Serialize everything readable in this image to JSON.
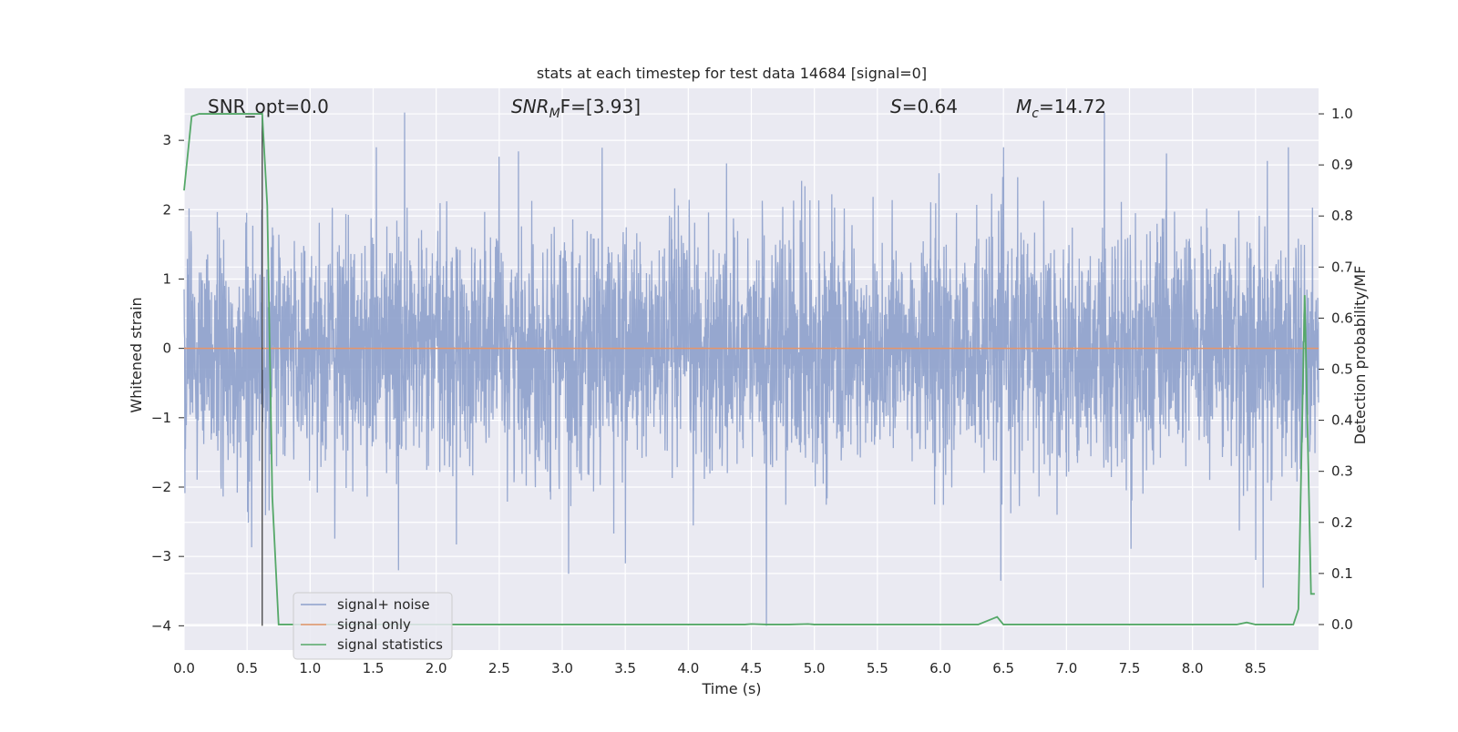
{
  "chart_data": {
    "type": "line",
    "title": "stats at each timestep for test data 14684 [signal=0]",
    "xlabel": "Time (s)",
    "ylabel": "Whitened strain",
    "y2label": "Detection probability/MF",
    "xlim": [
      0.0,
      9.0
    ],
    "ylim": [
      -4.35,
      3.75
    ],
    "y2lim": [
      -0.05,
      1.05
    ],
    "x_ticks": [
      0.0,
      0.5,
      1.0,
      1.5,
      2.0,
      2.5,
      3.0,
      3.5,
      4.0,
      4.5,
      5.0,
      5.5,
      6.0,
      6.5,
      7.0,
      7.5,
      8.0,
      8.5
    ],
    "x_tick_labels": [
      "0.0",
      "0.5",
      "1.0",
      "1.5",
      "2.0",
      "2.5",
      "3.0",
      "3.5",
      "4.0",
      "4.5",
      "5.0",
      "5.5",
      "6.0",
      "6.5",
      "7.0",
      "7.5",
      "8.0",
      "8.5"
    ],
    "y_ticks": [
      3,
      2,
      1,
      0,
      -1,
      -2,
      -3,
      -4
    ],
    "y_tick_labels": [
      "3",
      "2",
      "1",
      "0",
      "−1",
      "−2",
      "−3",
      "−4"
    ],
    "y2_ticks": [
      1.0,
      0.9,
      0.8,
      0.7,
      0.6,
      0.5,
      0.4,
      0.3,
      0.2,
      0.1,
      0.0
    ],
    "y2_tick_labels": [
      "1.0",
      "0.9",
      "0.8",
      "0.7",
      "0.6",
      "0.5",
      "0.4",
      "0.3",
      "0.2",
      "0.1",
      "0.0"
    ],
    "grid": true,
    "legend_position": "lower-left",
    "annotations": {
      "snr_opt": "SNR_opt=0.0",
      "snr_mf_main": "SNR",
      "snr_mf_sub": "M",
      "snr_mf_rest": "F=[3.93]",
      "s_main": "S",
      "s_rest": "=0.64",
      "mc_main": "M",
      "mc_sub": "c",
      "mc_rest": "=14.72"
    },
    "marker_line": {
      "x": 0.62,
      "y_from": -4.0,
      "y_to": 3.4
    },
    "series": [
      {
        "name": "signal+ noise",
        "color": "#8da0cb",
        "axis": "left",
        "description_only": false,
        "noise_seed": 14684,
        "n_samples": 4096,
        "spikes": [
          [
            1.75,
            3.4
          ],
          [
            7.3,
            3.4
          ],
          [
            4.62,
            -4.0
          ],
          [
            3.5,
            -3.1
          ],
          [
            1.7,
            -3.2
          ],
          [
            3.05,
            -3.25
          ],
          [
            6.48,
            -3.35
          ],
          [
            8.56,
            -3.45
          ],
          [
            8.5,
            -3.05
          ]
        ]
      },
      {
        "name": "signal only",
        "color": "#e5956a",
        "axis": "left",
        "x": [
          0.0,
          9.0
        ],
        "y": [
          0.0,
          0.0
        ]
      },
      {
        "name": "signal statistics",
        "color": "#55a868",
        "axis": "right",
        "x": [
          0.0,
          0.06,
          0.12,
          0.2,
          0.3,
          0.4,
          0.5,
          0.6,
          0.62,
          0.66,
          0.7,
          0.75,
          1.0,
          2.0,
          3.0,
          4.0,
          4.45,
          4.5,
          4.62,
          4.8,
          4.95,
          5.0,
          6.0,
          6.3,
          6.45,
          6.5,
          7.0,
          8.0,
          8.35,
          8.43,
          8.5,
          8.8,
          8.84,
          8.89,
          8.94,
          8.97
        ],
        "y": [
          0.85,
          0.995,
          1.0,
          1.0,
          1.0,
          1.0,
          1.0,
          1.0,
          1.0,
          0.82,
          0.25,
          0.0,
          0.0,
          0.0,
          0.0,
          0.0,
          0.0,
          0.001,
          0.0,
          0.0,
          0.001,
          0.0,
          0.0,
          0.0,
          0.015,
          0.0,
          0.0,
          0.0,
          0.0,
          0.004,
          0.0,
          0.0,
          0.03,
          0.645,
          0.06,
          0.06
        ]
      }
    ]
  }
}
